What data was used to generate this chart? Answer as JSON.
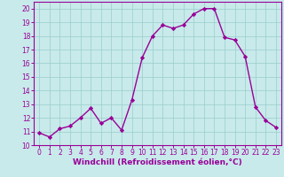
{
  "x": [
    0,
    1,
    2,
    3,
    4,
    5,
    6,
    7,
    8,
    9,
    10,
    11,
    12,
    13,
    14,
    15,
    16,
    17,
    18,
    19,
    20,
    21,
    22,
    23
  ],
  "y": [
    10.9,
    10.6,
    11.2,
    11.4,
    12.0,
    12.7,
    11.6,
    12.0,
    11.1,
    13.3,
    16.4,
    18.0,
    18.8,
    18.55,
    18.8,
    19.6,
    20.0,
    20.0,
    17.9,
    17.7,
    16.5,
    12.8,
    11.8,
    11.3
  ],
  "line_color": "#990099",
  "marker": "D",
  "markersize": 2.2,
  "linewidth": 1.0,
  "xlabel": "Windchill (Refroidissement éolien,°C)",
  "xlabel_fontsize": 6.5,
  "xlabel_color": "#990099",
  "xlim": [
    -0.5,
    23.5
  ],
  "ylim": [
    10,
    20.5
  ],
  "yticks": [
    10,
    11,
    12,
    13,
    14,
    15,
    16,
    17,
    18,
    19,
    20
  ],
  "xticks": [
    0,
    1,
    2,
    3,
    4,
    5,
    6,
    7,
    8,
    9,
    10,
    11,
    12,
    13,
    14,
    15,
    16,
    17,
    18,
    19,
    20,
    21,
    22,
    23
  ],
  "tick_fontsize": 5.5,
  "tick_color": "#990099",
  "grid_color": "#99cccc",
  "bg_color": "#c8eaea",
  "spine_color": "#990099"
}
